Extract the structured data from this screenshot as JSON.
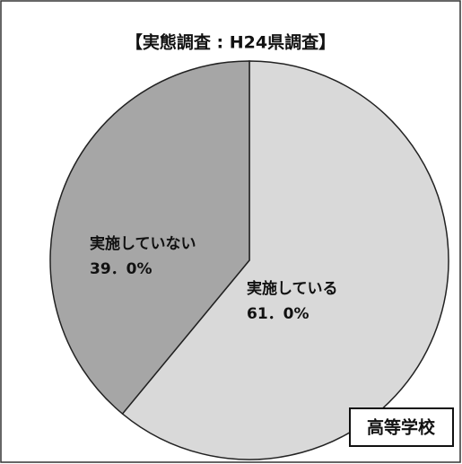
{
  "chart_data": {
    "type": "pie",
    "title": "【実態調査 : H24県調査】",
    "categories": [
      "実施している",
      "実施していない"
    ],
    "values": [
      61.0,
      39.0
    ],
    "value_labels": [
      "61．0%",
      "39．0%"
    ],
    "colors": [
      "#d9d9d9",
      "#a6a6a6"
    ],
    "annotation": "高等学校"
  }
}
